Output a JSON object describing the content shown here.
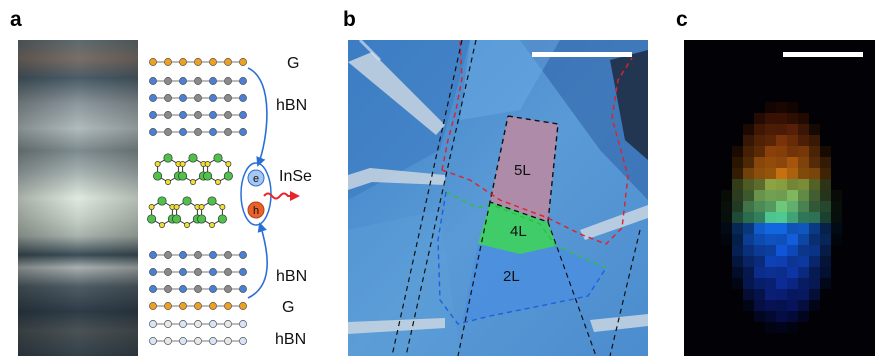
{
  "panels": {
    "a": {
      "letter": "a"
    },
    "b": {
      "letter": "b"
    },
    "c": {
      "letter": "c"
    }
  },
  "panel_a": {
    "layer_labels": [
      "G",
      "hBN",
      "InSe",
      "hBN",
      "G",
      "hBN"
    ],
    "electron_symbol": "e",
    "hole_symbol": "h"
  },
  "panel_b": {
    "region_labels": [
      "5L",
      "4L",
      "2L"
    ]
  },
  "colors": {
    "graphene_atom": "#f0a020",
    "boron_atom": "#4a7fd6",
    "nitrogen_atom": "#8a8a8a",
    "selenium_atom": "#f2e030",
    "indium_atom": "#4fc14a",
    "electron": "#6a9ee8",
    "hole": "#e8622a",
    "arrow": "#2a6fd6",
    "emission": "#e8262a",
    "region_5L": "#b48aa8",
    "region_4L": "#3fd063",
    "region_2L": "#4a8ee0",
    "outline_5L": "#111111",
    "outline_4L": "#2fbf3f",
    "outline_2L": "#1f5fe0",
    "outline_red": "#e0202a",
    "scale_bar": "#ffffff"
  }
}
